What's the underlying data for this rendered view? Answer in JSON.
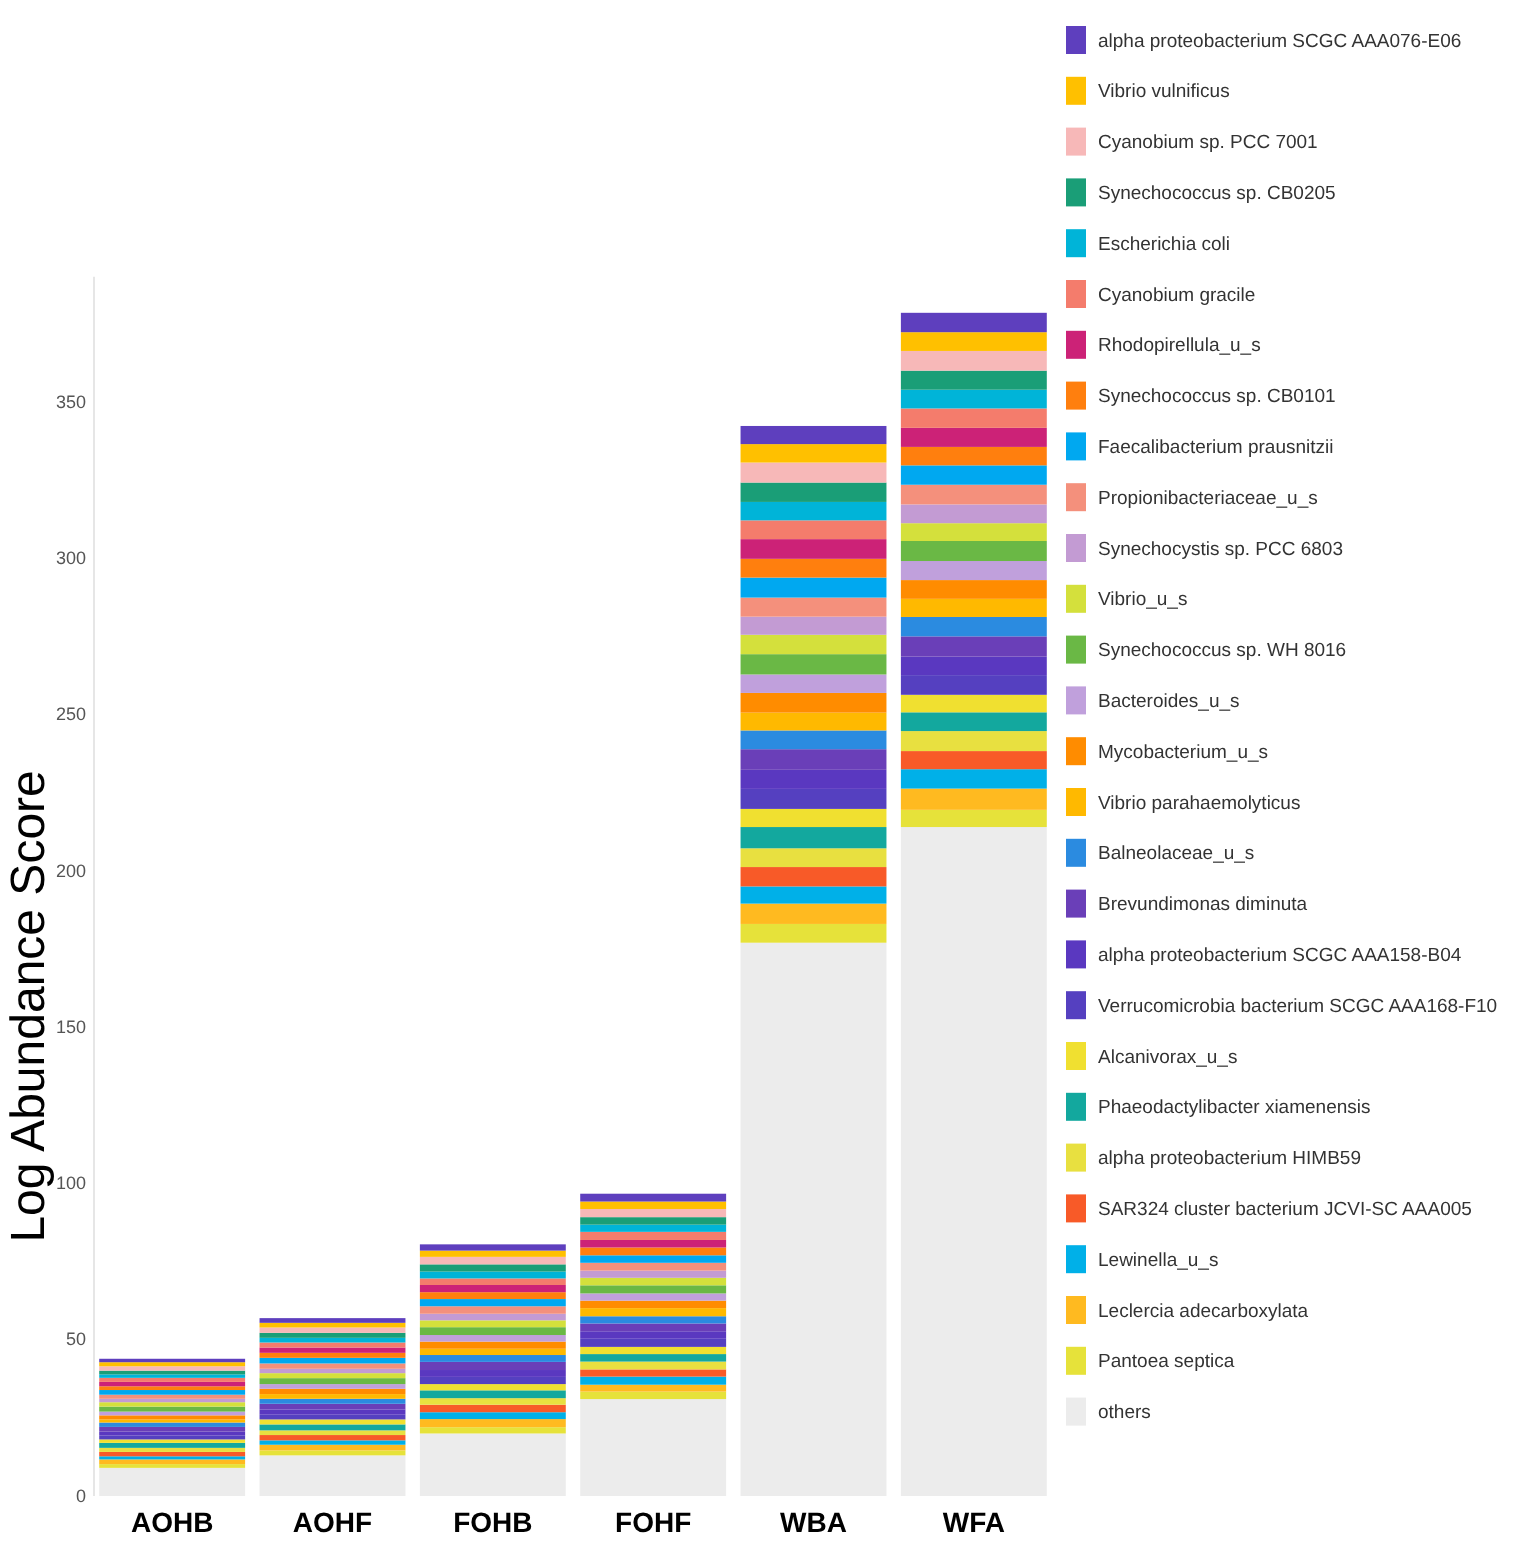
{
  "chart_data": {
    "type": "bar",
    "stacked": true,
    "ylabel": "Log Abundance Score",
    "categories": [
      "AOHB",
      "AOHF",
      "FOHB",
      "FOHF",
      "WBA",
      "WFA"
    ],
    "ylim": [
      0,
      390
    ],
    "yticks": [
      0,
      50,
      100,
      150,
      200,
      250,
      300,
      350
    ],
    "grid": false,
    "legend": "right",
    "series": [
      {
        "name": "others",
        "color": "#ececec",
        "values": [
          9,
          13,
          20,
          31,
          177,
          214
        ]
      },
      {
        "name": "Pantoea septica",
        "color": "#e6e23a",
        "values": [
          1.2,
          1.6,
          2.0,
          2.4,
          6.0,
          5.5
        ]
      },
      {
        "name": "Leclercia adecarboxylata",
        "color": "#ffba20",
        "values": [
          1.5,
          1.8,
          2.6,
          2.2,
          6.5,
          6.8
        ]
      },
      {
        "name": "Lewinella_u_s",
        "color": "#00b0e8",
        "values": [
          1.0,
          1.4,
          2.2,
          2.6,
          5.5,
          6.2
        ]
      },
      {
        "name": "SAR324 cluster bacterium JCVI-SC AAA005",
        "color": "#f85a28",
        "values": [
          1.4,
          1.7,
          2.4,
          2.3,
          6.2,
          5.8
        ]
      },
      {
        "name": "alpha proteobacterium HIMB59",
        "color": "#e8e040",
        "values": [
          1.3,
          1.5,
          2.1,
          2.5,
          6.0,
          6.4
        ]
      },
      {
        "name": "Phaeodactylibacter xiamenensis",
        "color": "#13a89e",
        "values": [
          1.6,
          1.9,
          2.5,
          2.4,
          6.8,
          6.0
        ]
      },
      {
        "name": "Alcanivorax_u_s",
        "color": "#f0e030",
        "values": [
          1.1,
          1.6,
          2.0,
          2.3,
          5.8,
          5.6
        ]
      },
      {
        "name": "Verrucomicrobia bacterium SCGC AAA168-F10",
        "color": "#5540c0",
        "values": [
          1.3,
          1.5,
          2.3,
          2.6,
          6.4,
          6.3
        ]
      },
      {
        "name": "alpha proteobacterium SCGC AAA158-B04",
        "color": "#5a38c0",
        "values": [
          1.2,
          1.7,
          2.2,
          2.4,
          6.1,
          5.9
        ]
      },
      {
        "name": "Brevundimonas diminuta",
        "color": "#6a3fb8",
        "values": [
          1.5,
          1.8,
          2.6,
          2.5,
          6.6,
          6.5
        ]
      },
      {
        "name": "Balneolaceae_u_s",
        "color": "#2b8be0",
        "values": [
          1.4,
          1.6,
          2.2,
          2.3,
          6.0,
          6.2
        ]
      },
      {
        "name": "Vibrio parahaemolyticus",
        "color": "#ffb900",
        "values": [
          1.0,
          1.5,
          2.0,
          2.6,
          5.7,
          5.8
        ]
      },
      {
        "name": "Mycobacterium_u_s",
        "color": "#ff8c00",
        "values": [
          1.3,
          1.7,
          2.3,
          2.4,
          6.3,
          6.0
        ]
      },
      {
        "name": "Bacteroides_u_s",
        "color": "#c0a0dc",
        "values": [
          1.2,
          1.5,
          2.1,
          2.3,
          5.9,
          6.1
        ]
      },
      {
        "name": "Synechococcus sp. WH 8016",
        "color": "#6ab845",
        "values": [
          1.6,
          1.9,
          2.5,
          2.6,
          6.5,
          6.4
        ]
      },
      {
        "name": "Vibrio_u_s",
        "color": "#d4e03c",
        "values": [
          1.4,
          1.6,
          2.2,
          2.4,
          6.2,
          5.7
        ]
      },
      {
        "name": "Synechocystis sp. PCC 6803",
        "color": "#c39bd3",
        "values": [
          1.1,
          1.4,
          2.1,
          2.3,
          5.8,
          6.0
        ]
      },
      {
        "name": "Propionibacteriaceae_u_s",
        "color": "#f4907c",
        "values": [
          1.3,
          1.7,
          2.4,
          2.5,
          6.1,
          6.3
        ]
      },
      {
        "name": "Faecalibacterium prausnitzii",
        "color": "#00a8f0",
        "values": [
          1.5,
          1.8,
          2.3,
          2.4,
          6.4,
          6.2
        ]
      },
      {
        "name": "Synechococcus sp. CB0101",
        "color": "#ff7f0e",
        "values": [
          1.2,
          1.6,
          2.2,
          2.5,
          6.0,
          5.9
        ]
      },
      {
        "name": "Rhodopirellula_u_s",
        "color": "#cc2277",
        "values": [
          1.4,
          1.7,
          2.3,
          2.4,
          6.3,
          6.1
        ]
      },
      {
        "name": "Cyanobium gracile",
        "color": "#f47c6c",
        "values": [
          1.3,
          1.6,
          2.1,
          2.6,
          6.0,
          6.2
        ]
      },
      {
        "name": "Escherichia coli",
        "color": "#00b4d8",
        "values": [
          1.1,
          1.5,
          2.2,
          2.3,
          5.9,
          6.0
        ]
      },
      {
        "name": "Synechococcus sp. CB0205",
        "color": "#1a9e77",
        "values": [
          1.2,
          1.6,
          2.3,
          2.4,
          6.2,
          6.1
        ]
      },
      {
        "name": "Cyanobium sp. PCC 7001",
        "color": "#f7b8b8",
        "values": [
          1.4,
          1.7,
          2.4,
          2.6,
          6.4,
          6.3
        ]
      },
      {
        "name": "Vibrio vulnificus",
        "color": "#ffc000",
        "values": [
          1.3,
          1.5,
          2.0,
          2.4,
          5.9,
          6.0
        ]
      },
      {
        "name": "alpha proteobacterium SCGC AAA076-E06",
        "color": "#5e3fbe",
        "values": [
          1.1,
          1.5,
          2.0,
          2.5,
          5.8,
          6.2
        ]
      }
    ]
  }
}
